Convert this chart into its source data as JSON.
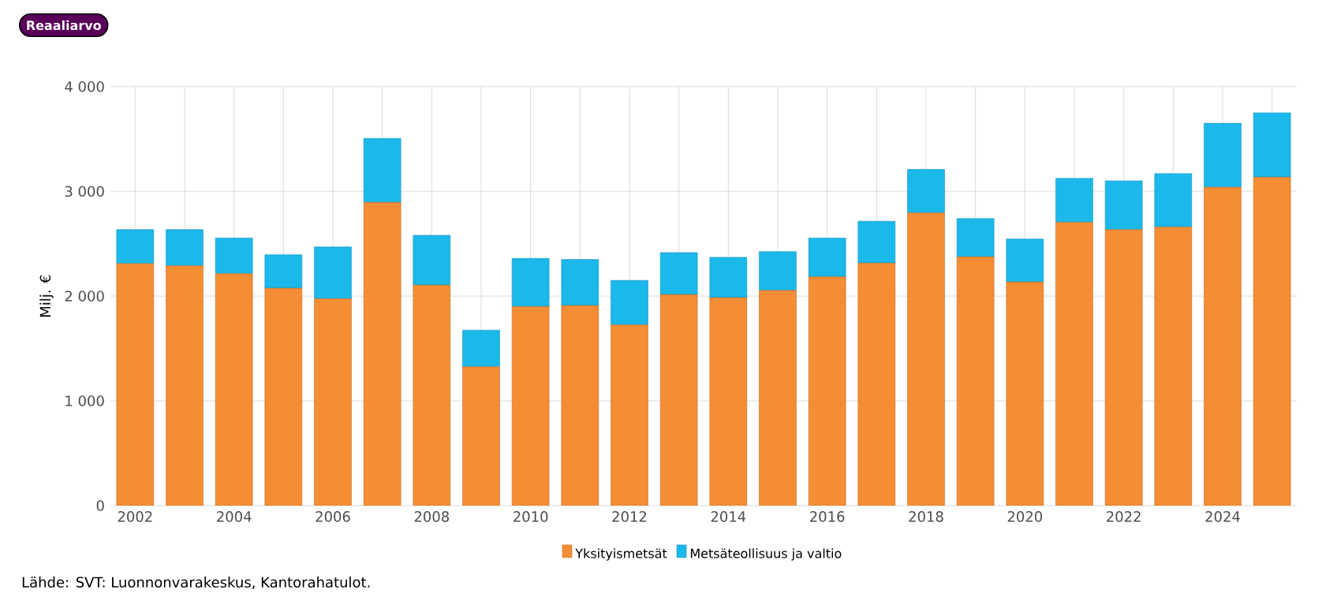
{
  "chart_data": {
    "type": "bar",
    "stacked": true,
    "ylabel": "Milj. €",
    "x": [
      2002,
      2003,
      2004,
      2005,
      2006,
      2007,
      2008,
      2009,
      2010,
      2011,
      2012,
      2013,
      2014,
      2015,
      2016,
      2017,
      2018,
      2019,
      2020,
      2021,
      2022,
      2023,
      2024,
      2025
    ],
    "series": [
      {
        "name": "Yksityismetsät",
        "color": "#f58d35",
        "values": [
          2310,
          2290,
          2215,
          2075,
          1975,
          2895,
          2105,
          1325,
          1900,
          1910,
          1725,
          2015,
          1985,
          2055,
          2185,
          2315,
          2795,
          2375,
          2135,
          2705,
          2635,
          2660,
          3040,
          3135
        ]
      },
      {
        "name": "Metsäteollisuus ja valtio",
        "color": "#1bb8ea",
        "values": [
          325,
          345,
          340,
          320,
          495,
          610,
          475,
          350,
          460,
          440,
          425,
          400,
          385,
          370,
          370,
          400,
          415,
          365,
          410,
          420,
          465,
          510,
          610,
          615
        ]
      }
    ],
    "xlim": [
      2001.5,
      2025.5
    ],
    "xticks": [
      2002,
      {
        "value": 2003,
        "label": null
      },
      2004,
      {
        "value": 2005,
        "label": null
      },
      2006,
      {
        "value": 2007,
        "label": null
      },
      2008,
      {
        "value": 2009,
        "label": null
      },
      2010,
      {
        "value": 2011,
        "label": null
      },
      2012,
      {
        "value": 2013,
        "label": null
      },
      2014,
      {
        "value": 2015,
        "label": null
      },
      2016,
      {
        "value": 2017,
        "label": null
      },
      2018,
      {
        "value": 2019,
        "label": null
      },
      2020,
      {
        "value": 2021,
        "label": null
      },
      2022,
      {
        "value": 2023,
        "label": null
      },
      2024,
      {
        "value": 2025,
        "label": null
      }
    ],
    "ylim": [
      0,
      4000
    ],
    "yticks": [
      0,
      {
        "value": 1000,
        "label": "1 000"
      },
      {
        "value": 2000,
        "label": "2 000"
      },
      {
        "value": 3000,
        "label": "3 000"
      },
      {
        "value": 4000,
        "label": "4 000"
      }
    ],
    "grid": true,
    "legend": "bottom",
    "annotations": [
      "Lähde: SVT: Luonnonvarakeskus, Kantorahatulot.",
      "Reaaliarvo"
    ]
  }
}
